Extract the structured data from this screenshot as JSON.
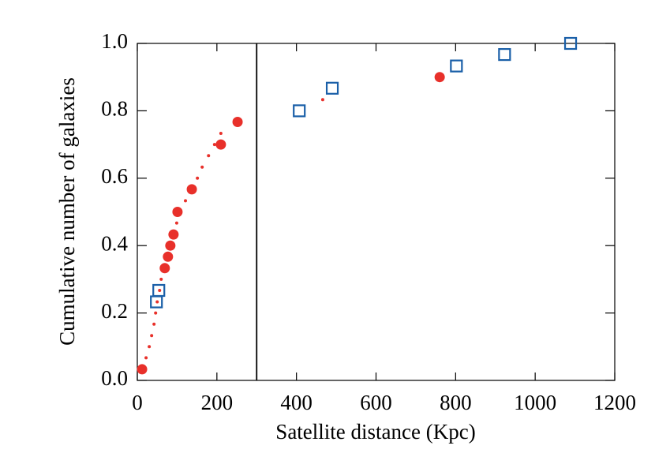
{
  "chart_data": {
    "type": "scatter",
    "xlabel": "Satellite distance (Kpc)",
    "ylabel": "Cumulative number of galaxies",
    "xlim": [
      0,
      1200
    ],
    "ylim": [
      0,
      1
    ],
    "xticks": [
      0,
      200,
      400,
      600,
      800,
      1000,
      1200
    ],
    "yticks": [
      {
        "value": 0,
        "label": "0.0"
      },
      0.2,
      0.4,
      0.6,
      0.8,
      {
        "value": 1,
        "label": "1.0"
      }
    ],
    "vline": 300,
    "series": [
      {
        "color": "#e8302a",
        "marker": "circle",
        "x": [
          12,
          69,
          77,
          83,
          91,
          101,
          137,
          210,
          252,
          760
        ],
        "values": [
          0.033,
          0.333,
          0.367,
          0.4,
          0.433,
          0.5,
          0.567,
          0.7,
          0.767,
          0.9
        ]
      },
      {
        "color": "#1a5fa8",
        "marker": "square",
        "x": [
          48,
          54,
          407,
          490,
          802,
          923,
          1089
        ],
        "values": [
          0.233,
          0.267,
          0.8,
          0.867,
          0.933,
          0.967,
          1.0
        ]
      },
      {
        "color": "#e8302a",
        "marker": "dot",
        "x": [
          22,
          30,
          36,
          42,
          46,
          50,
          56,
          60,
          67,
          75,
          83,
          91,
          99,
          109,
          121,
          137,
          151,
          163,
          179,
          194,
          210,
          466
        ],
        "values": [
          0.067,
          0.1,
          0.133,
          0.167,
          0.2,
          0.233,
          0.267,
          0.3,
          0.333,
          0.367,
          0.4,
          0.433,
          0.467,
          0.5,
          0.533,
          0.567,
          0.6,
          0.633,
          0.667,
          0.7,
          0.733,
          0.833
        ]
      }
    ]
  }
}
